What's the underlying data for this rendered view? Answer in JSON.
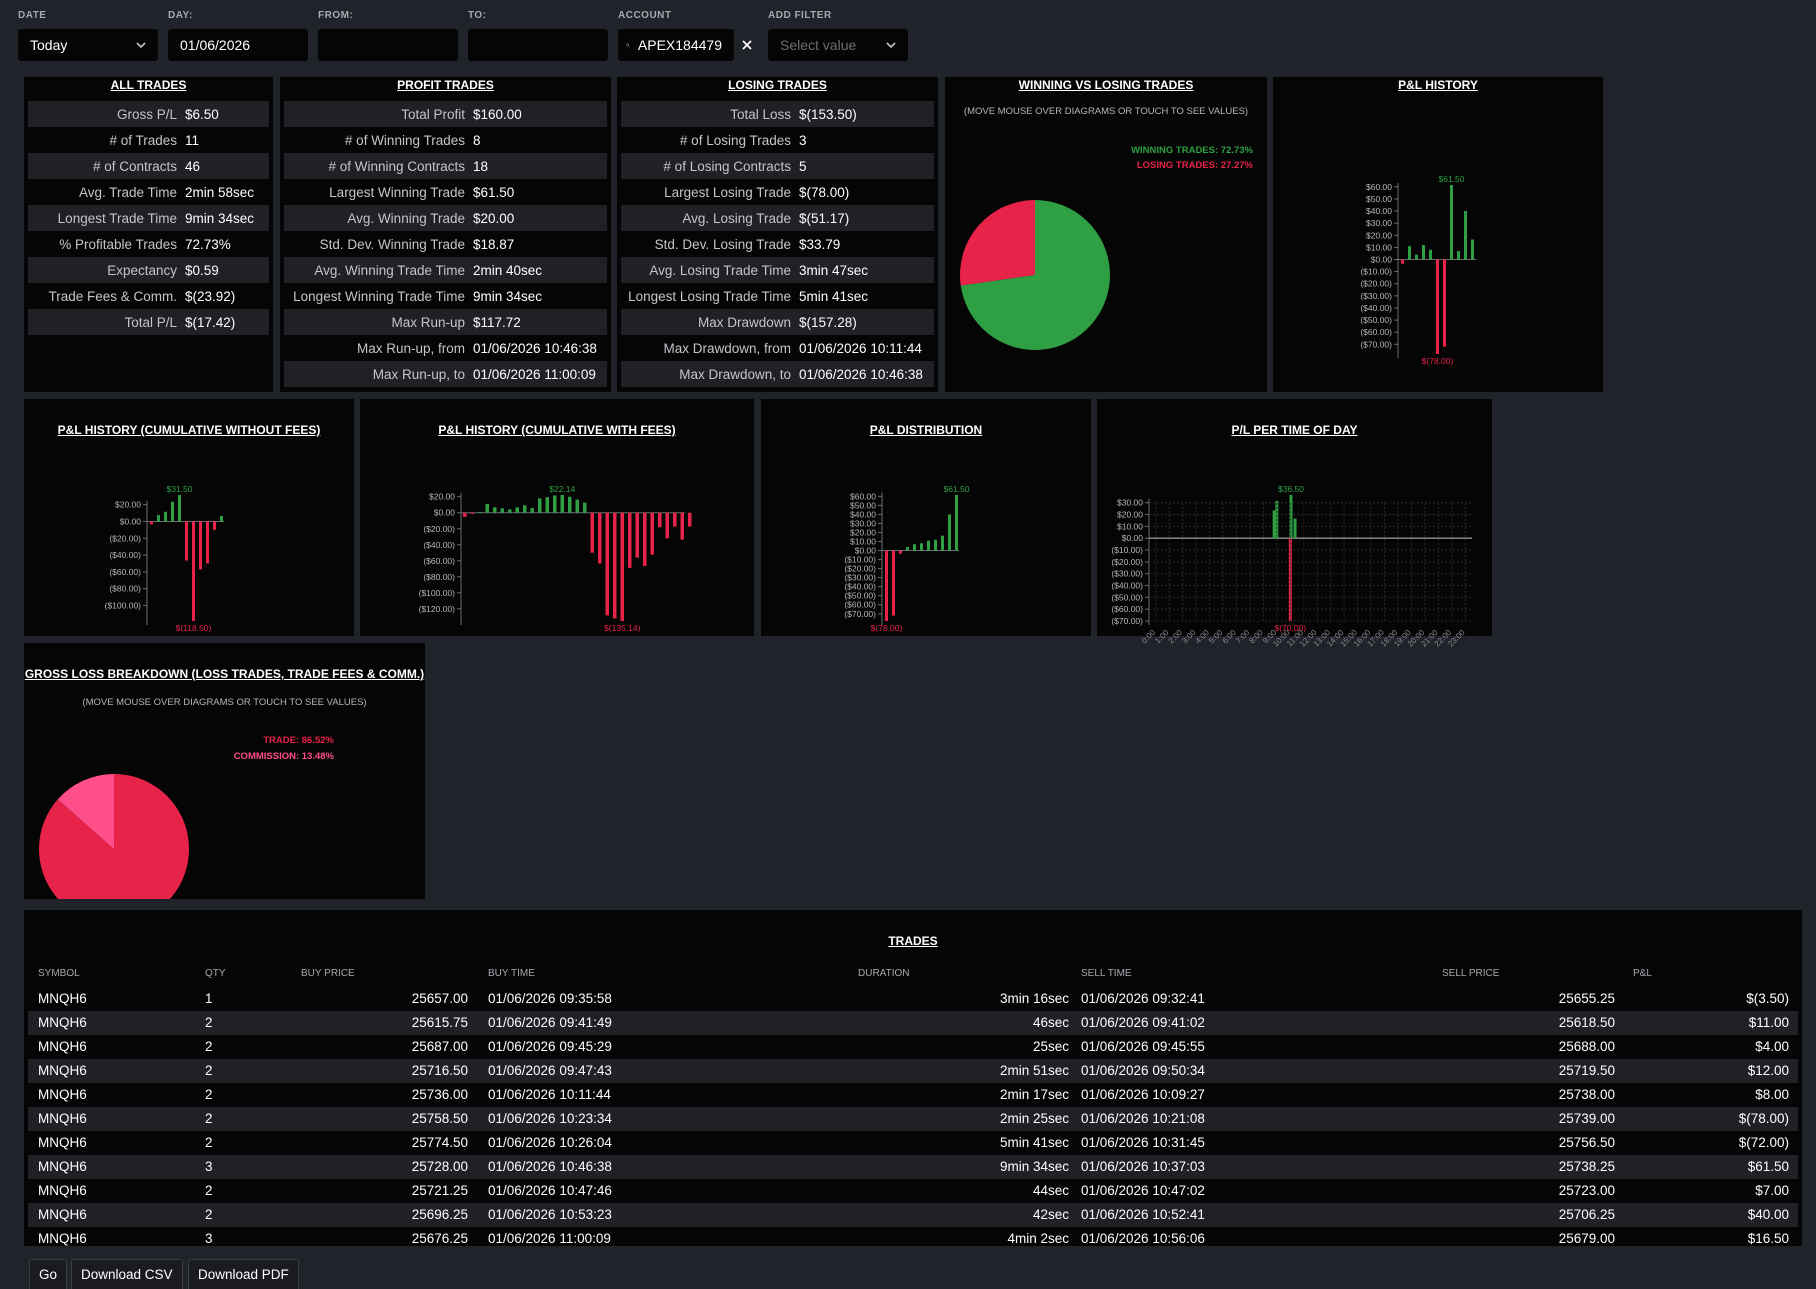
{
  "filters": {
    "date": {
      "label": "DATE",
      "value": "Today"
    },
    "day": {
      "label": "DAY:",
      "value": "01/06/2026"
    },
    "from": {
      "label": "FROM:",
      "value": ""
    },
    "to": {
      "label": "TO:",
      "value": ""
    },
    "account": {
      "label": "ACCOUNT",
      "value": "APEX184479"
    },
    "add_filter": {
      "label": "ADD FILTER",
      "placeholder": "Select value"
    }
  },
  "all_trades": {
    "title": "ALL TRADES",
    "rows": [
      {
        "k": "Gross P/L",
        "v": "$6.50"
      },
      {
        "k": "# of Trades",
        "v": "11"
      },
      {
        "k": "# of Contracts",
        "v": "46"
      },
      {
        "k": "Avg. Trade Time",
        "v": "2min 58sec"
      },
      {
        "k": "Longest Trade Time",
        "v": "9min 34sec"
      },
      {
        "k": "% Profitable Trades",
        "v": "72.73%"
      },
      {
        "k": "Expectancy",
        "v": "$0.59"
      },
      {
        "k": "Trade Fees & Comm.",
        "v": "$(23.92)"
      },
      {
        "k": "Total P/L",
        "v": "$(17.42)"
      }
    ]
  },
  "profit_trades": {
    "title": "PROFIT TRADES",
    "rows": [
      {
        "k": "Total Profit",
        "v": "$160.00"
      },
      {
        "k": "# of Winning Trades",
        "v": "8"
      },
      {
        "k": "# of Winning Contracts",
        "v": "18"
      },
      {
        "k": "Largest Winning Trade",
        "v": "$61.50"
      },
      {
        "k": "Avg. Winning Trade",
        "v": "$20.00"
      },
      {
        "k": "Std. Dev. Winning Trade",
        "v": "$18.87"
      },
      {
        "k": "Avg. Winning Trade Time",
        "v": "2min 40sec"
      },
      {
        "k": "Longest Winning Trade Time",
        "v": "9min 34sec"
      },
      {
        "k": "Max Run-up",
        "v": "$117.72"
      },
      {
        "k": "Max Run-up, from",
        "v": "01/06/2026 10:46:38"
      },
      {
        "k": "Max Run-up, to",
        "v": "01/06/2026 11:00:09"
      }
    ]
  },
  "losing_trades": {
    "title": "LOSING TRADES",
    "rows": [
      {
        "k": "Total Loss",
        "v": "$(153.50)"
      },
      {
        "k": "# of Losing Trades",
        "v": "3"
      },
      {
        "k": "# of Losing Contracts",
        "v": "5"
      },
      {
        "k": "Largest Losing Trade",
        "v": "$(78.00)"
      },
      {
        "k": "Avg. Losing Trade",
        "v": "$(51.17)"
      },
      {
        "k": "Std. Dev. Losing Trade",
        "v": "$33.79"
      },
      {
        "k": "Avg. Losing Trade Time",
        "v": "3min 47sec"
      },
      {
        "k": "Longest Losing Trade Time",
        "v": "5min 41sec"
      },
      {
        "k": "Max Drawdown",
        "v": "$(157.28)"
      },
      {
        "k": "Max Drawdown, from",
        "v": "01/06/2026 10:11:44"
      },
      {
        "k": "Max Drawdown, to",
        "v": "01/06/2026 10:46:38"
      }
    ]
  },
  "win_loss": {
    "title": "WINNING VS LOSING TRADES",
    "hint": "(MOVE MOUSE OVER DIAGRAMS OR TOUCH TO SEE VALUES)",
    "legend_win": "WINNING TRADES: 72.73%",
    "legend_loss": "LOSING TRADES: 27.27%"
  },
  "gross_loss": {
    "title": "GROSS LOSS BREAKDOWN (LOSS TRADES, TRADE FEES & COMM.)",
    "hint": "(MOVE MOUSE OVER DIAGRAMS OR TOUCH TO SEE VALUES)",
    "legend_trade": "TRADE: 86.52%",
    "legend_comm": "COMMISSION: 13.48%"
  },
  "chart_titles": {
    "pl_history": "P&L HISTORY",
    "cum_no_fees": "P&L HISTORY (CUMULATIVE WITHOUT FEES)",
    "cum_fees": "P&L HISTORY (CUMULATIVE WITH FEES)",
    "distribution": "P&L DISTRIBUTION",
    "time_of_day": "P/L PER TIME OF DAY"
  },
  "chart_data": [
    {
      "id": "pl_history",
      "type": "bar",
      "values": [
        -3.5,
        11,
        4,
        12,
        8,
        -78,
        -72,
        61.5,
        7,
        40,
        16.5
      ],
      "yticks": [
        60,
        50,
        40,
        30,
        20,
        10,
        0,
        -10,
        -20,
        -30,
        -40,
        -50,
        -60,
        -70
      ],
      "ylim": [
        -78,
        61.5
      ],
      "max_label": "$61.50",
      "min_label": "$(78.00)",
      "colors": {
        "pos": "#2ea043",
        "neg": "#e8234a"
      }
    },
    {
      "id": "cum_no_fees",
      "type": "bar",
      "values": [
        -3.5,
        7.5,
        11.5,
        23.5,
        31.5,
        -46.5,
        -118.5,
        -57,
        -50,
        -10,
        6.5
      ],
      "yticks": [
        20,
        0,
        -20,
        -40,
        -60,
        -80,
        -100
      ],
      "ylim": [
        -118.5,
        31.5
      ],
      "max_label": "$31.50",
      "min_label": "$(118.50)"
    },
    {
      "id": "cum_fees",
      "type": "bar",
      "values": [
        -5.2,
        -1.5,
        0.8,
        10.9,
        6.8,
        5.5,
        4.1,
        6.7,
        9.3,
        5.8,
        17.9,
        19.3,
        21.5,
        22.14,
        20.0,
        16.4,
        12.6,
        -49.9,
        -63.4,
        -128.2,
        -131.9,
        -135.14,
        -68.8,
        -56.1,
        -66.4,
        -52.3,
        -18.1,
        -31.9,
        -17.4,
        -33.6,
        -17.42
      ],
      "yticks": [
        20,
        0,
        -20,
        -40,
        -60,
        -80,
        -100,
        -120
      ],
      "ylim": [
        -135.14,
        22.14
      ],
      "max_label": "$22.14",
      "min_label": "$(135.14)"
    },
    {
      "id": "distribution",
      "type": "bar",
      "values": [
        -78,
        -72,
        -3.5,
        4,
        7,
        8,
        11,
        12,
        16.5,
        40,
        61.5
      ],
      "yticks": [
        60,
        50,
        40,
        30,
        20,
        10,
        0,
        -10,
        -20,
        -30,
        -40,
        -50,
        -60,
        -70
      ],
      "ylim": [
        -78,
        61.5
      ],
      "max_label": "$61.50",
      "min_label": "$(78.00)"
    },
    {
      "id": "time_of_day",
      "type": "bar",
      "x": [
        "0:00",
        "1:00",
        "2:00",
        "3:00",
        "4:00",
        "5:00",
        "6:00",
        "7:00",
        "8:00",
        "9:00",
        "10:00",
        "11:00",
        "12:00",
        "13:00",
        "14:00",
        "15:00",
        "16:00",
        "17:00",
        "18:00",
        "19:00",
        "20:00",
        "21:00",
        "22:00",
        "23:00"
      ],
      "values": [
        0,
        0,
        0,
        0,
        0,
        0,
        0,
        0,
        0,
        31.5,
        -70,
        0,
        0,
        0,
        0,
        0,
        0,
        0,
        0,
        0,
        0,
        0,
        0,
        0
      ],
      "extra_bars": [
        {
          "hour": 9.3,
          "value": 23.5
        },
        {
          "hour": 10.55,
          "value": 36.5
        },
        {
          "hour": 10.85,
          "value": 16.5
        }
      ],
      "yticks": [
        30,
        20,
        10,
        0,
        -10,
        -20,
        -30,
        -40,
        -50,
        -60,
        -70
      ],
      "ylim": [
        -70,
        36.5
      ],
      "max_label": "$36.50",
      "min_label": "$(70.00)"
    },
    {
      "id": "win_loss_pie",
      "type": "pie",
      "labels": [
        "Winning Trades",
        "Losing Trades"
      ],
      "values": [
        72.73,
        27.27
      ],
      "colors": [
        "#2ea043",
        "#e8234a"
      ]
    },
    {
      "id": "gross_loss_pie",
      "type": "pie",
      "labels": [
        "Trade",
        "Commission"
      ],
      "values": [
        86.52,
        13.48
      ],
      "colors": [
        "#e8234a",
        "#ff4f8b"
      ]
    }
  ],
  "trades_table": {
    "title": "TRADES",
    "headers": [
      "SYMBOL",
      "QTY",
      "BUY PRICE",
      "BUY TIME",
      "DURATION",
      "SELL TIME",
      "SELL PRICE",
      "P&L"
    ],
    "rows": [
      [
        "MNQH6",
        "1",
        "25657.00",
        "01/06/2026 09:35:58",
        "3min 16sec",
        "01/06/2026 09:32:41",
        "25655.25",
        "$(3.50)"
      ],
      [
        "MNQH6",
        "2",
        "25615.75",
        "01/06/2026 09:41:49",
        "46sec",
        "01/06/2026 09:41:02",
        "25618.50",
        "$11.00"
      ],
      [
        "MNQH6",
        "2",
        "25687.00",
        "01/06/2026 09:45:29",
        "25sec",
        "01/06/2026 09:45:55",
        "25688.00",
        "$4.00"
      ],
      [
        "MNQH6",
        "2",
        "25716.50",
        "01/06/2026 09:47:43",
        "2min 51sec",
        "01/06/2026 09:50:34",
        "25719.50",
        "$12.00"
      ],
      [
        "MNQH6",
        "2",
        "25736.00",
        "01/06/2026 10:11:44",
        "2min 17sec",
        "01/06/2026 10:09:27",
        "25738.00",
        "$8.00"
      ],
      [
        "MNQH6",
        "2",
        "25758.50",
        "01/06/2026 10:23:34",
        "2min 25sec",
        "01/06/2026 10:21:08",
        "25739.00",
        "$(78.00)"
      ],
      [
        "MNQH6",
        "2",
        "25774.50",
        "01/06/2026 10:26:04",
        "5min 41sec",
        "01/06/2026 10:31:45",
        "25756.50",
        "$(72.00)"
      ],
      [
        "MNQH6",
        "3",
        "25728.00",
        "01/06/2026 10:46:38",
        "9min 34sec",
        "01/06/2026 10:37:03",
        "25738.25",
        "$61.50"
      ],
      [
        "MNQH6",
        "2",
        "25721.25",
        "01/06/2026 10:47:46",
        "44sec",
        "01/06/2026 10:47:02",
        "25723.00",
        "$7.00"
      ],
      [
        "MNQH6",
        "2",
        "25696.25",
        "01/06/2026 10:53:23",
        "42sec",
        "01/06/2026 10:52:41",
        "25706.25",
        "$40.00"
      ],
      [
        "MNQH6",
        "3",
        "25676.25",
        "01/06/2026 11:00:09",
        "4min 2sec",
        "01/06/2026 10:56:06",
        "25679.00",
        "$16.50"
      ]
    ]
  },
  "buttons": {
    "go": "Go",
    "csv": "Download CSV",
    "pdf": "Download PDF"
  }
}
